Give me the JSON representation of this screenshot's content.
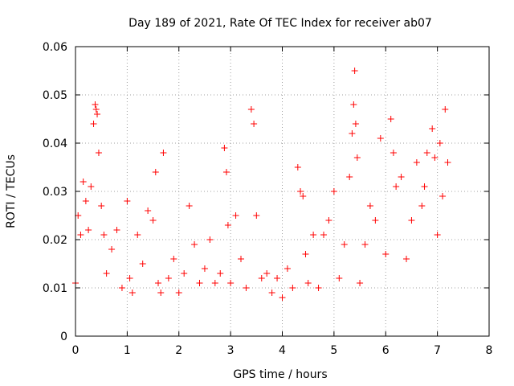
{
  "chart_data": {
    "type": "scatter",
    "title": "Day 189 of 2021, Rate Of TEC Index for receiver ab07",
    "xlabel": "GPS time / hours",
    "ylabel": "ROTI / TECUs",
    "xlim": [
      0,
      8
    ],
    "ylim": [
      0,
      0.06
    ],
    "x_ticks": [
      0,
      1,
      2,
      3,
      4,
      5,
      6,
      7,
      8
    ],
    "y_ticks": [
      0,
      0.01,
      0.02,
      0.03,
      0.04,
      0.05,
      0.06
    ],
    "x_tick_labels": [
      "0",
      "1",
      "2",
      "3",
      "4",
      "5",
      "6",
      "7",
      "8"
    ],
    "y_tick_labels": [
      "0",
      "0.01",
      "0.02",
      "0.03",
      "0.04",
      "0.05",
      "0.06"
    ],
    "grid": true,
    "marker": "+",
    "color": "#ff0000",
    "series": [
      {
        "name": "ROTI",
        "x": [
          0.0,
          0.05,
          0.1,
          0.15,
          0.2,
          0.25,
          0.3,
          0.35,
          0.38,
          0.4,
          0.42,
          0.45,
          0.5,
          0.55,
          0.6,
          0.7,
          0.8,
          0.9,
          1.0,
          1.05,
          1.1,
          1.2,
          1.3,
          1.4,
          1.5,
          1.55,
          1.6,
          1.65,
          1.7,
          1.8,
          1.9,
          2.0,
          2.1,
          2.2,
          2.3,
          2.4,
          2.5,
          2.6,
          2.7,
          2.8,
          2.88,
          2.92,
          2.95,
          3.0,
          3.1,
          3.2,
          3.3,
          3.4,
          3.45,
          3.5,
          3.6,
          3.7,
          3.8,
          3.9,
          4.0,
          4.1,
          4.2,
          4.3,
          4.35,
          4.4,
          4.45,
          4.5,
          4.6,
          4.7,
          4.8,
          4.9,
          5.0,
          5.1,
          5.2,
          5.3,
          5.35,
          5.38,
          5.4,
          5.42,
          5.45,
          5.5,
          5.6,
          5.7,
          5.8,
          5.9,
          6.0,
          6.1,
          6.15,
          6.2,
          6.3,
          6.4,
          6.5,
          6.6,
          6.7,
          6.75,
          6.8,
          6.9,
          6.95,
          7.0,
          7.05,
          7.1,
          7.15,
          7.2
        ],
        "y": [
          0.011,
          0.025,
          0.021,
          0.032,
          0.028,
          0.022,
          0.031,
          0.044,
          0.048,
          0.047,
          0.046,
          0.038,
          0.027,
          0.021,
          0.013,
          0.018,
          0.022,
          0.01,
          0.028,
          0.012,
          0.009,
          0.021,
          0.015,
          0.026,
          0.024,
          0.034,
          0.011,
          0.009,
          0.038,
          0.012,
          0.016,
          0.009,
          0.013,
          0.027,
          0.019,
          0.011,
          0.014,
          0.02,
          0.011,
          0.013,
          0.039,
          0.034,
          0.023,
          0.011,
          0.025,
          0.016,
          0.01,
          0.047,
          0.044,
          0.025,
          0.012,
          0.013,
          0.009,
          0.012,
          0.008,
          0.014,
          0.01,
          0.035,
          0.03,
          0.029,
          0.017,
          0.011,
          0.021,
          0.01,
          0.021,
          0.024,
          0.03,
          0.012,
          0.019,
          0.033,
          0.042,
          0.048,
          0.055,
          0.044,
          0.037,
          0.011,
          0.019,
          0.027,
          0.024,
          0.041,
          0.017,
          0.045,
          0.038,
          0.031,
          0.033,
          0.016,
          0.024,
          0.036,
          0.027,
          0.031,
          0.038,
          0.043,
          0.037,
          0.021,
          0.04,
          0.029,
          0.047,
          0.036
        ]
      }
    ]
  }
}
